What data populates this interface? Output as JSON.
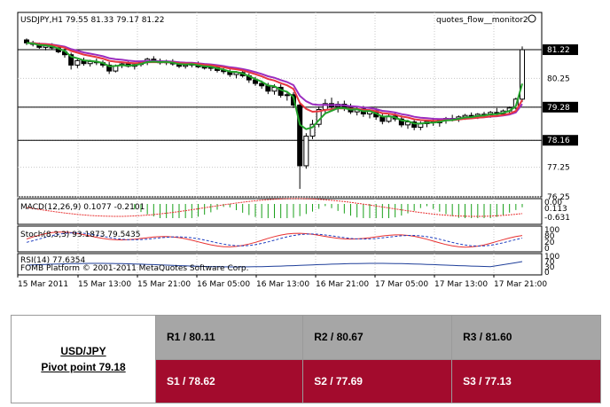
{
  "chart_data": {
    "type": "candlestick",
    "title": "USDJPY,H1  79.55 81.33 79.17 81.22",
    "watermark": "quotes_flow__monitor2",
    "price_axis": {
      "ylim": [
        76.25,
        82.0
      ],
      "ticks": [
        "81.22",
        "80.25",
        "79.28",
        "78.16",
        "77.25",
        "76.25"
      ],
      "highlighted": [
        "81.22",
        "79.28",
        "78.16"
      ]
    },
    "x_ticks": [
      "15 Mar 2011",
      "15 Mar 13:00",
      "15 Mar 21:00",
      "16 Mar 05:00",
      "16 Mar 13:00",
      "16 Mar 21:00",
      "17 Mar 05:00",
      "17 Mar 13:00",
      "17 Mar 21:00"
    ],
    "horizontal_levels": [
      81.22,
      79.28,
      78.16
    ],
    "candles": [
      {
        "o": 81.55,
        "h": 81.6,
        "l": 81.38,
        "c": 81.45
      },
      {
        "o": 81.45,
        "h": 81.52,
        "l": 81.33,
        "c": 81.4
      },
      {
        "o": 81.4,
        "h": 81.46,
        "l": 81.25,
        "c": 81.3
      },
      {
        "o": 81.3,
        "h": 81.42,
        "l": 81.2,
        "c": 81.35
      },
      {
        "o": 81.35,
        "h": 81.44,
        "l": 81.22,
        "c": 81.28
      },
      {
        "o": 81.28,
        "h": 81.34,
        "l": 81.1,
        "c": 81.15
      },
      {
        "o": 81.15,
        "h": 81.25,
        "l": 80.95,
        "c": 81.05
      },
      {
        "o": 81.05,
        "h": 81.12,
        "l": 80.55,
        "c": 80.7
      },
      {
        "o": 80.7,
        "h": 80.9,
        "l": 80.6,
        "c": 80.85
      },
      {
        "o": 80.85,
        "h": 80.95,
        "l": 80.68,
        "c": 80.75
      },
      {
        "o": 80.75,
        "h": 80.88,
        "l": 80.65,
        "c": 80.82
      },
      {
        "o": 80.82,
        "h": 80.92,
        "l": 80.7,
        "c": 80.78
      },
      {
        "o": 80.78,
        "h": 80.86,
        "l": 80.62,
        "c": 80.7
      },
      {
        "o": 80.7,
        "h": 80.8,
        "l": 80.4,
        "c": 80.5
      },
      {
        "o": 80.5,
        "h": 80.72,
        "l": 80.45,
        "c": 80.68
      },
      {
        "o": 80.68,
        "h": 80.8,
        "l": 80.6,
        "c": 80.74
      },
      {
        "o": 80.74,
        "h": 80.82,
        "l": 80.62,
        "c": 80.66
      },
      {
        "o": 80.66,
        "h": 80.76,
        "l": 80.55,
        "c": 80.72
      },
      {
        "o": 80.72,
        "h": 80.85,
        "l": 80.65,
        "c": 80.8
      },
      {
        "o": 80.8,
        "h": 80.95,
        "l": 80.7,
        "c": 80.9
      },
      {
        "o": 80.9,
        "h": 81.0,
        "l": 80.78,
        "c": 80.84
      },
      {
        "o": 80.84,
        "h": 80.92,
        "l": 80.72,
        "c": 80.78
      },
      {
        "o": 80.78,
        "h": 80.88,
        "l": 80.7,
        "c": 80.82
      },
      {
        "o": 80.82,
        "h": 80.9,
        "l": 80.68,
        "c": 80.74
      },
      {
        "o": 80.74,
        "h": 80.82,
        "l": 80.6,
        "c": 80.66
      },
      {
        "o": 80.66,
        "h": 80.78,
        "l": 80.58,
        "c": 80.7
      },
      {
        "o": 80.7,
        "h": 80.8,
        "l": 80.62,
        "c": 80.75
      },
      {
        "o": 80.75,
        "h": 80.82,
        "l": 80.6,
        "c": 80.64
      },
      {
        "o": 80.64,
        "h": 80.72,
        "l": 80.55,
        "c": 80.6
      },
      {
        "o": 80.6,
        "h": 80.7,
        "l": 80.5,
        "c": 80.62
      },
      {
        "o": 80.62,
        "h": 80.68,
        "l": 80.45,
        "c": 80.52
      },
      {
        "o": 80.52,
        "h": 80.6,
        "l": 80.4,
        "c": 80.48
      },
      {
        "o": 80.48,
        "h": 80.55,
        "l": 80.3,
        "c": 80.38
      },
      {
        "o": 80.38,
        "h": 80.5,
        "l": 80.25,
        "c": 80.45
      },
      {
        "o": 80.45,
        "h": 80.52,
        "l": 80.28,
        "c": 80.34
      },
      {
        "o": 80.34,
        "h": 80.42,
        "l": 80.1,
        "c": 80.2
      },
      {
        "o": 80.2,
        "h": 80.3,
        "l": 80.0,
        "c": 80.08
      },
      {
        "o": 80.08,
        "h": 80.18,
        "l": 79.9,
        "c": 80.0
      },
      {
        "o": 80.0,
        "h": 80.1,
        "l": 79.72,
        "c": 79.82
      },
      {
        "o": 79.82,
        "h": 80.05,
        "l": 79.7,
        "c": 79.95
      },
      {
        "o": 79.95,
        "h": 80.05,
        "l": 79.6,
        "c": 79.68
      },
      {
        "o": 79.68,
        "h": 79.8,
        "l": 79.5,
        "c": 79.7
      },
      {
        "o": 79.7,
        "h": 79.78,
        "l": 79.25,
        "c": 79.35
      },
      {
        "o": 79.35,
        "h": 79.45,
        "l": 76.52,
        "c": 77.3
      },
      {
        "o": 77.3,
        "h": 78.4,
        "l": 77.2,
        "c": 78.3
      },
      {
        "o": 78.3,
        "h": 78.85,
        "l": 78.2,
        "c": 78.7
      },
      {
        "o": 78.7,
        "h": 79.3,
        "l": 78.6,
        "c": 79.2
      },
      {
        "o": 79.2,
        "h": 79.55,
        "l": 79.05,
        "c": 79.4
      },
      {
        "o": 79.4,
        "h": 79.6,
        "l": 79.2,
        "c": 79.3
      },
      {
        "o": 79.3,
        "h": 79.48,
        "l": 79.1,
        "c": 79.38
      },
      {
        "o": 79.38,
        "h": 79.5,
        "l": 79.15,
        "c": 79.25
      },
      {
        "o": 79.25,
        "h": 79.4,
        "l": 79.05,
        "c": 79.12
      },
      {
        "o": 79.12,
        "h": 79.3,
        "l": 79.0,
        "c": 79.22
      },
      {
        "o": 79.22,
        "h": 79.32,
        "l": 78.95,
        "c": 79.05
      },
      {
        "o": 79.05,
        "h": 79.2,
        "l": 78.9,
        "c": 79.15
      },
      {
        "o": 79.15,
        "h": 79.25,
        "l": 78.85,
        "c": 78.95
      },
      {
        "o": 78.95,
        "h": 79.1,
        "l": 78.7,
        "c": 78.8
      },
      {
        "o": 78.8,
        "h": 79.05,
        "l": 78.75,
        "c": 78.98
      },
      {
        "o": 78.98,
        "h": 79.1,
        "l": 78.8,
        "c": 78.88
      },
      {
        "o": 78.88,
        "h": 79.0,
        "l": 78.6,
        "c": 78.68
      },
      {
        "o": 78.68,
        "h": 78.85,
        "l": 78.55,
        "c": 78.78
      },
      {
        "o": 78.78,
        "h": 78.9,
        "l": 78.5,
        "c": 78.6
      },
      {
        "o": 78.6,
        "h": 78.8,
        "l": 78.5,
        "c": 78.72
      },
      {
        "o": 78.72,
        "h": 78.85,
        "l": 78.6,
        "c": 78.8
      },
      {
        "o": 78.8,
        "h": 78.92,
        "l": 78.65,
        "c": 78.75
      },
      {
        "o": 78.75,
        "h": 78.9,
        "l": 78.62,
        "c": 78.84
      },
      {
        "o": 78.84,
        "h": 78.95,
        "l": 78.72,
        "c": 78.9
      },
      {
        "o": 78.9,
        "h": 79.02,
        "l": 78.8,
        "c": 78.86
      },
      {
        "o": 78.86,
        "h": 79.0,
        "l": 78.78,
        "c": 78.95
      },
      {
        "o": 78.95,
        "h": 79.05,
        "l": 78.85,
        "c": 79.0
      },
      {
        "o": 79.0,
        "h": 79.1,
        "l": 78.9,
        "c": 78.96
      },
      {
        "o": 78.96,
        "h": 79.08,
        "l": 78.88,
        "c": 79.04
      },
      {
        "o": 79.04,
        "h": 79.12,
        "l": 78.95,
        "c": 79.02
      },
      {
        "o": 79.02,
        "h": 79.15,
        "l": 78.92,
        "c": 79.1
      },
      {
        "o": 79.1,
        "h": 79.25,
        "l": 79.0,
        "c": 79.05
      },
      {
        "o": 79.05,
        "h": 79.2,
        "l": 78.98,
        "c": 79.15
      },
      {
        "o": 79.15,
        "h": 79.3,
        "l": 79.08,
        "c": 79.25
      },
      {
        "o": 79.25,
        "h": 79.6,
        "l": 79.2,
        "c": 79.55
      },
      {
        "o": 79.55,
        "h": 81.33,
        "l": 79.45,
        "c": 81.22
      }
    ],
    "moving_averages": [
      {
        "color": "#9b2dbf"
      },
      {
        "color": "#e8363f"
      },
      {
        "color": "#22a22a"
      }
    ],
    "indicators": [
      {
        "label": "MACD(12,26,9) 0.1077 -0.2101",
        "scale": [
          "0.00",
          "0.113",
          "-0.631"
        ],
        "histogram_color": "#1aa01a",
        "signal_color": "#e83030"
      },
      {
        "label": "Stoch(8,3,3) 93.1873 79.5435",
        "scale": [
          "100",
          "80",
          "20",
          "0"
        ],
        "main_color": "#e83030",
        "signal_color": "#1f3fc0"
      },
      {
        "label": "RSI(14) 77.6354",
        "scale": [
          "100",
          "70",
          "30",
          "0"
        ],
        "line_color": "#1f3f9a"
      }
    ],
    "footer_text": "FOMB Platform © 2001-2011 MetaQuotes Software Corp."
  },
  "pivot_table": {
    "pair": "USD/JPY",
    "pivot": "Pivot point 79.18",
    "resistance": [
      "R1 / 80.11",
      "R2 / 80.67",
      "R3 / 81.60"
    ],
    "support": [
      "S1 / 78.62",
      "S2 / 77.69",
      "S3 / 77.13"
    ]
  }
}
